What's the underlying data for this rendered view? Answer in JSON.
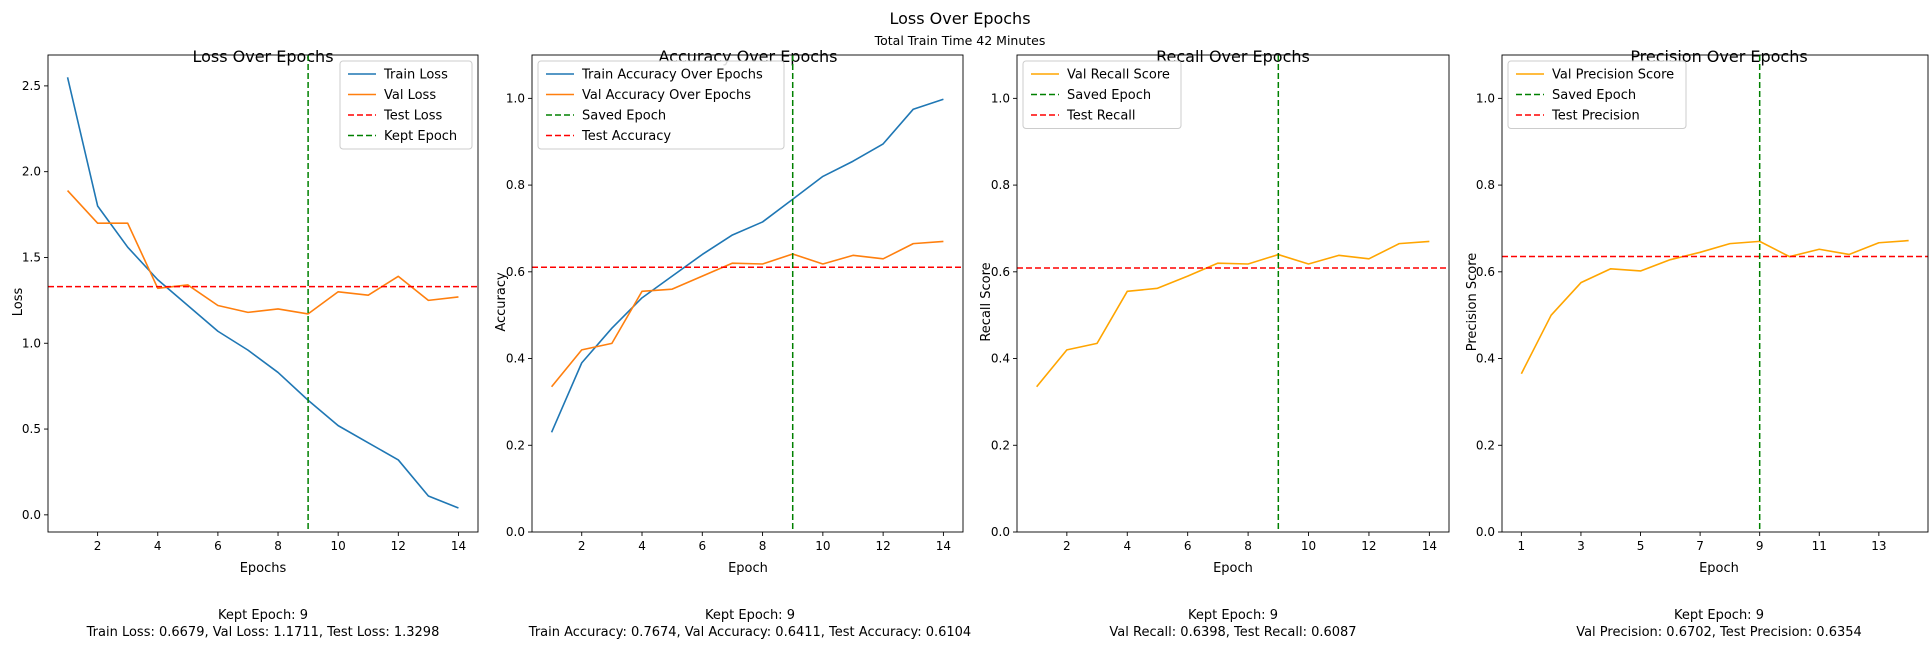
{
  "figure": {
    "title": "Loss Over Epochs",
    "subtitle": "Total Train Time 42 Minutes"
  },
  "chart_data": [
    {
      "type": "line",
      "title": "Loss Over Epochs",
      "xlabel": "Epochs",
      "ylabel": "Loss",
      "xlim": [
        0.35,
        14.65
      ],
      "ylim": [
        -0.1,
        2.68
      ],
      "xticks": [
        2,
        4,
        6,
        8,
        10,
        12,
        14
      ],
      "yticks": [
        0.0,
        0.5,
        1.0,
        1.5,
        2.0,
        2.5
      ],
      "ytick_labels": [
        "0.0",
        "0.5",
        "1.0",
        "1.5",
        "2.0",
        "2.5"
      ],
      "x": [
        1,
        2,
        3,
        4,
        5,
        6,
        7,
        8,
        9,
        10,
        11,
        12,
        13,
        14
      ],
      "series": [
        {
          "name": "Train Loss",
          "color": "#1f77b4",
          "values": [
            2.55,
            1.8,
            1.56,
            1.37,
            1.22,
            1.07,
            0.96,
            0.83,
            0.6679,
            0.52,
            0.42,
            0.32,
            0.11,
            0.04
          ]
        },
        {
          "name": "Val Loss",
          "color": "#ff7f0e",
          "values": [
            1.89,
            1.7,
            1.7,
            1.32,
            1.34,
            1.22,
            1.18,
            1.2,
            1.1711,
            1.3,
            1.28,
            1.39,
            1.25,
            1.27
          ]
        }
      ],
      "hlines": [
        {
          "name": "Test Loss",
          "color": "#ff0000",
          "value": 1.3298
        }
      ],
      "vlines": [
        {
          "name": "Kept Epoch",
          "color": "#008000",
          "value": 9
        }
      ],
      "legend_order": [
        "Train Loss",
        "Val Loss",
        "Test Loss",
        "Kept Epoch"
      ],
      "legend": "top-right",
      "grid": false,
      "caption": [
        "Kept Epoch: 9",
        "Train Loss: 0.6679, Val Loss: 1.1711, Test Loss: 1.3298"
      ]
    },
    {
      "type": "line",
      "title": "Accuracy Over Epochs",
      "xlabel": "Epoch",
      "ylabel": "Accuracy",
      "xlim": [
        0.35,
        14.65
      ],
      "ylim": [
        0.0,
        1.1
      ],
      "xticks": [
        2,
        4,
        6,
        8,
        10,
        12,
        14
      ],
      "yticks": [
        0.0,
        0.2,
        0.4,
        0.6,
        0.8,
        1.0
      ],
      "ytick_labels": [
        "0.0",
        "0.2",
        "0.4",
        "0.6",
        "0.8",
        "1.0"
      ],
      "x": [
        1,
        2,
        3,
        4,
        5,
        6,
        7,
        8,
        9,
        10,
        11,
        12,
        13,
        14
      ],
      "series": [
        {
          "name": "Train Accuracy Over Epochs",
          "color": "#1f77b4",
          "values": [
            0.23,
            0.39,
            0.47,
            0.54,
            0.59,
            0.64,
            0.685,
            0.715,
            0.7674,
            0.82,
            0.855,
            0.895,
            0.975,
            0.998
          ]
        },
        {
          "name": "Val Accuracy Over Epochs",
          "color": "#ff7f0e",
          "values": [
            0.335,
            0.42,
            0.435,
            0.555,
            0.56,
            0.59,
            0.62,
            0.618,
            0.6411,
            0.618,
            0.638,
            0.63,
            0.665,
            0.67
          ]
        }
      ],
      "hlines": [
        {
          "name": "Test Accuracy",
          "color": "#ff0000",
          "value": 0.6104
        }
      ],
      "vlines": [
        {
          "name": "Saved Epoch",
          "color": "#008000",
          "value": 9
        }
      ],
      "legend_order": [
        "Train Accuracy Over Epochs",
        "Val Accuracy Over Epochs",
        "Saved Epoch",
        "Test Accuracy"
      ],
      "legend": "top-left",
      "grid": false,
      "caption": [
        "Kept Epoch: 9",
        "Train Accuracy: 0.7674, Val Accuracy: 0.6411, Test Accuracy: 0.6104"
      ]
    },
    {
      "type": "line",
      "title": "Recall Over Epochs",
      "xlabel": "Epoch",
      "ylabel": "Recall Score",
      "xlim": [
        0.35,
        14.65
      ],
      "ylim": [
        0.0,
        1.1
      ],
      "xticks": [
        2,
        4,
        6,
        8,
        10,
        12,
        14
      ],
      "yticks": [
        0.0,
        0.2,
        0.4,
        0.6,
        0.8,
        1.0
      ],
      "ytick_labels": [
        "0.0",
        "0.2",
        "0.4",
        "0.6",
        "0.8",
        "1.0"
      ],
      "x": [
        1,
        2,
        3,
        4,
        5,
        6,
        7,
        8,
        9,
        10,
        11,
        12,
        13,
        14
      ],
      "series": [
        {
          "name": "Val Recall Score",
          "color": "#ffa500",
          "values": [
            0.335,
            0.42,
            0.435,
            0.555,
            0.562,
            0.59,
            0.62,
            0.618,
            0.6398,
            0.618,
            0.638,
            0.63,
            0.665,
            0.67
          ]
        }
      ],
      "hlines": [
        {
          "name": "Test Recall",
          "color": "#ff0000",
          "value": 0.6087
        }
      ],
      "vlines": [
        {
          "name": "Saved Epoch",
          "color": "#008000",
          "value": 9
        }
      ],
      "legend_order": [
        "Val Recall Score",
        "Saved Epoch",
        "Test Recall"
      ],
      "legend": "top-left",
      "grid": false,
      "caption": [
        "Kept Epoch: 9",
        "Val Recall: 0.6398, Test Recall: 0.6087"
      ]
    },
    {
      "type": "line",
      "title": "Precision Over Epochs",
      "xlabel": "Epoch",
      "ylabel": "Precision Score",
      "xlim": [
        0.35,
        14.65
      ],
      "ylim": [
        0.0,
        1.1
      ],
      "xticks": [
        1,
        3,
        5,
        7,
        9,
        11,
        13
      ],
      "yticks": [
        0.0,
        0.2,
        0.4,
        0.6,
        0.8,
        1.0
      ],
      "ytick_labels": [
        "0.0",
        "0.2",
        "0.4",
        "0.6",
        "0.8",
        "1.0"
      ],
      "x": [
        1,
        2,
        3,
        4,
        5,
        6,
        7,
        8,
        9,
        10,
        11,
        12,
        13,
        14
      ],
      "series": [
        {
          "name": "Val Precision Score",
          "color": "#ffa500",
          "values": [
            0.365,
            0.5,
            0.575,
            0.607,
            0.602,
            0.628,
            0.645,
            0.665,
            0.6702,
            0.635,
            0.652,
            0.64,
            0.667,
            0.672
          ]
        }
      ],
      "hlines": [
        {
          "name": "Test Precision",
          "color": "#ff0000",
          "value": 0.6354
        }
      ],
      "vlines": [
        {
          "name": "Saved Epoch",
          "color": "#008000",
          "value": 9
        }
      ],
      "legend_order": [
        "Val Precision Score",
        "Saved Epoch",
        "Test Precision"
      ],
      "legend": "top-left",
      "grid": false,
      "caption": [
        "Kept Epoch: 9",
        "Val Precision: 0.6702, Test Precision: 0.6354"
      ]
    }
  ]
}
